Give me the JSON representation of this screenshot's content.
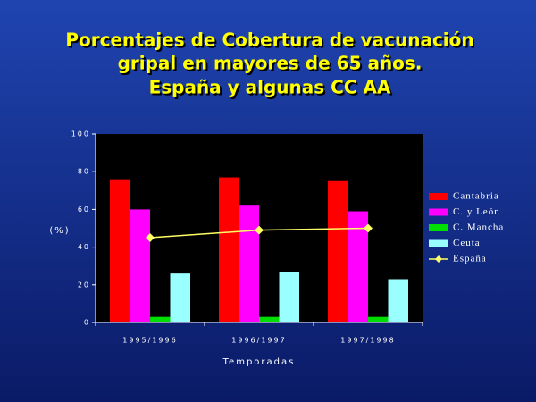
{
  "chart_data": {
    "type": "bar",
    "title": [
      "Porcentajes de Cobertura de vacunación",
      "gripal en mayores de 65 años.",
      "España y algunas CC AA"
    ],
    "y_label": "(%)",
    "x_label": "Temporadas",
    "categories": [
      "1995/1996",
      "1996/1997",
      "1997/1998"
    ],
    "series": [
      {
        "name": "Cantabria",
        "color": "#ff0000",
        "values": [
          76,
          77,
          75
        ]
      },
      {
        "name": "C. y León",
        "color": "#ff00ff",
        "values": [
          60,
          62,
          59
        ]
      },
      {
        "name": "C. Mancha",
        "color": "#00dd00",
        "values": [
          3,
          3,
          3
        ]
      },
      {
        "name": "Ceuta",
        "color": "#99ffff",
        "values": [
          26,
          27,
          23
        ]
      },
      {
        "name": "España",
        "color": "#ffff66",
        "type": "line",
        "values": [
          45,
          49,
          50
        ]
      }
    ],
    "ylim": [
      0,
      100
    ],
    "yticks": [
      0,
      20,
      40,
      60,
      80,
      100
    ],
    "grid": false,
    "legend": "right"
  }
}
